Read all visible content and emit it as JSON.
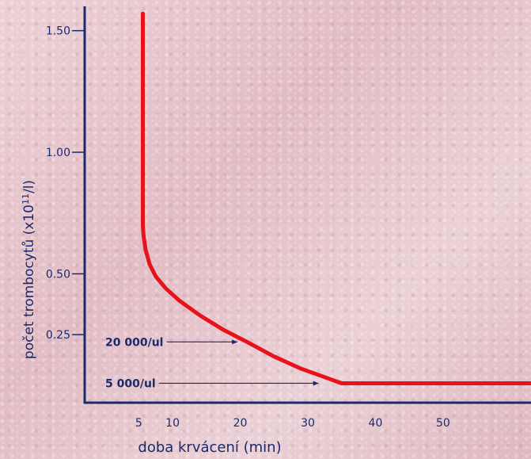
{
  "chart_data": {
    "type": "line",
    "xlabel": "doba krvácení (min)",
    "ylabel": "počet trombocytů (x10",
    "ylabel_sup": "11",
    "ylabel_suffix": "/l)",
    "x_ticks": [
      {
        "value": 5,
        "label": "5"
      },
      {
        "value": 10,
        "label": "10"
      },
      {
        "value": 20,
        "label": "20"
      },
      {
        "value": 30,
        "label": "30"
      },
      {
        "value": 40,
        "label": "40"
      },
      {
        "value": 50,
        "label": "50"
      }
    ],
    "y_ticks": [
      {
        "value": 0.25,
        "label": "0.25"
      },
      {
        "value": 0.5,
        "label": "0.50"
      },
      {
        "value": 1.0,
        "label": "1.00"
      },
      {
        "value": 1.5,
        "label": "1.50"
      }
    ],
    "xlim": [
      -3,
      63
    ],
    "ylim": [
      -0.03,
      1.6
    ],
    "series": [
      {
        "color": "#e8121a",
        "x": [
          5.6,
          5.6,
          5.6,
          5.7,
          6.0,
          6.6,
          7.5,
          9.0,
          11.0,
          14.0,
          17.5,
          21.0,
          25.0,
          29.0,
          33.0,
          35.0,
          45.0,
          55.0,
          63.0
        ],
        "y": [
          1.57,
          1.2,
          0.7,
          0.66,
          0.6,
          0.54,
          0.49,
          0.44,
          0.39,
          0.33,
          0.27,
          0.22,
          0.16,
          0.11,
          0.07,
          0.05,
          0.05,
          0.05,
          0.05
        ]
      }
    ],
    "annotations": [
      {
        "text": "20 000/ul",
        "x": 21,
        "y": 0.22
      },
      {
        "text": "5 000/ul",
        "x": 33,
        "y": 0.05
      }
    ],
    "colors": {
      "axis": "#1a2a6c",
      "line": "#e8121a"
    }
  }
}
